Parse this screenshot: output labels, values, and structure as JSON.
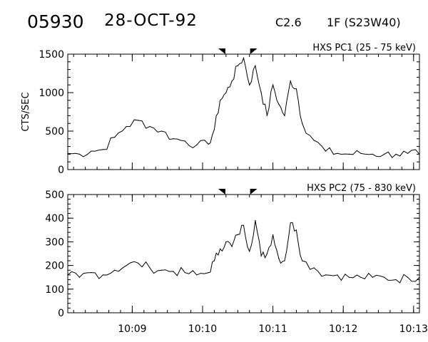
{
  "header": {
    "event_id": "05930",
    "date": "28-OCT-92",
    "goes_class": "C2.6",
    "importance_location": "1F (S23W40)"
  },
  "chart_data": [
    {
      "type": "line",
      "title": "HXS PC1 (25 - 75 keV)",
      "ylabel": "CTS/SEC",
      "xlabel": "",
      "x_unit": "UT",
      "x_range": [
        "10:08:05",
        "10:13:05"
      ],
      "ylim": [
        0,
        1500
      ],
      "y_ticks": [
        0,
        500,
        1000,
        1500
      ],
      "x_tick_labels": [
        "10:09",
        "10:10",
        "10:11",
        "10:12",
        "10:13"
      ],
      "markers": [
        "10:10:17",
        "10:10:43"
      ],
      "x": [
        "10:08:05",
        "10:08:15",
        "10:08:25",
        "10:08:35",
        "10:08:45",
        "10:08:55",
        "10:09:05",
        "10:09:15",
        "10:09:25",
        "10:09:35",
        "10:09:45",
        "10:09:55",
        "10:10:05",
        "10:10:10",
        "10:10:15",
        "10:10:20",
        "10:10:25",
        "10:10:30",
        "10:10:35",
        "10:10:40",
        "10:10:45",
        "10:10:50",
        "10:10:55",
        "10:11:00",
        "10:11:05",
        "10:11:10",
        "10:11:15",
        "10:11:20",
        "10:11:25",
        "10:11:35",
        "10:11:45",
        "10:11:55",
        "10:12:05",
        "10:12:15",
        "10:12:25",
        "10:12:35",
        "10:12:45",
        "10:12:55",
        "10:13:05"
      ],
      "values": [
        210,
        200,
        240,
        260,
        420,
        560,
        640,
        560,
        500,
        400,
        370,
        320,
        330,
        520,
        900,
        1000,
        1150,
        1350,
        1450,
        1100,
        1350,
        1000,
        700,
        1100,
        850,
        700,
        1150,
        1050,
        600,
        380,
        240,
        210,
        200,
        210,
        200,
        200,
        200,
        210,
        200
      ]
    },
    {
      "type": "line",
      "title": "HXS PC2 (75 - 830 keV)",
      "ylabel": "",
      "xlabel": "",
      "x_unit": "UT",
      "x_range": [
        "10:08:05",
        "10:13:05"
      ],
      "ylim": [
        0,
        500
      ],
      "y_ticks": [
        0,
        100,
        200,
        300,
        400,
        500
      ],
      "x_tick_labels": [
        "10:09",
        "10:10",
        "10:11",
        "10:12",
        "10:13"
      ],
      "markers": [
        "10:10:17",
        "10:10:43"
      ],
      "x": [
        "10:08:05",
        "10:08:15",
        "10:08:25",
        "10:08:35",
        "10:08:45",
        "10:08:55",
        "10:09:05",
        "10:09:15",
        "10:09:25",
        "10:09:35",
        "10:09:45",
        "10:09:55",
        "10:10:05",
        "10:10:10",
        "10:10:15",
        "10:10:20",
        "10:10:25",
        "10:10:30",
        "10:10:35",
        "10:10:40",
        "10:10:45",
        "10:10:50",
        "10:10:55",
        "10:11:00",
        "10:11:05",
        "10:11:10",
        "10:11:15",
        "10:11:20",
        "10:11:25",
        "10:11:35",
        "10:11:45",
        "10:11:55",
        "10:12:05",
        "10:12:15",
        "10:12:25",
        "10:12:35",
        "10:12:45",
        "10:12:55",
        "10:13:05"
      ],
      "values": [
        160,
        150,
        170,
        160,
        180,
        200,
        210,
        190,
        180,
        175,
        170,
        160,
        170,
        220,
        270,
        300,
        280,
        330,
        370,
        260,
        390,
        240,
        250,
        330,
        230,
        220,
        380,
        350,
        220,
        190,
        160,
        160,
        150,
        150,
        150,
        150,
        140,
        150,
        150
      ]
    }
  ]
}
